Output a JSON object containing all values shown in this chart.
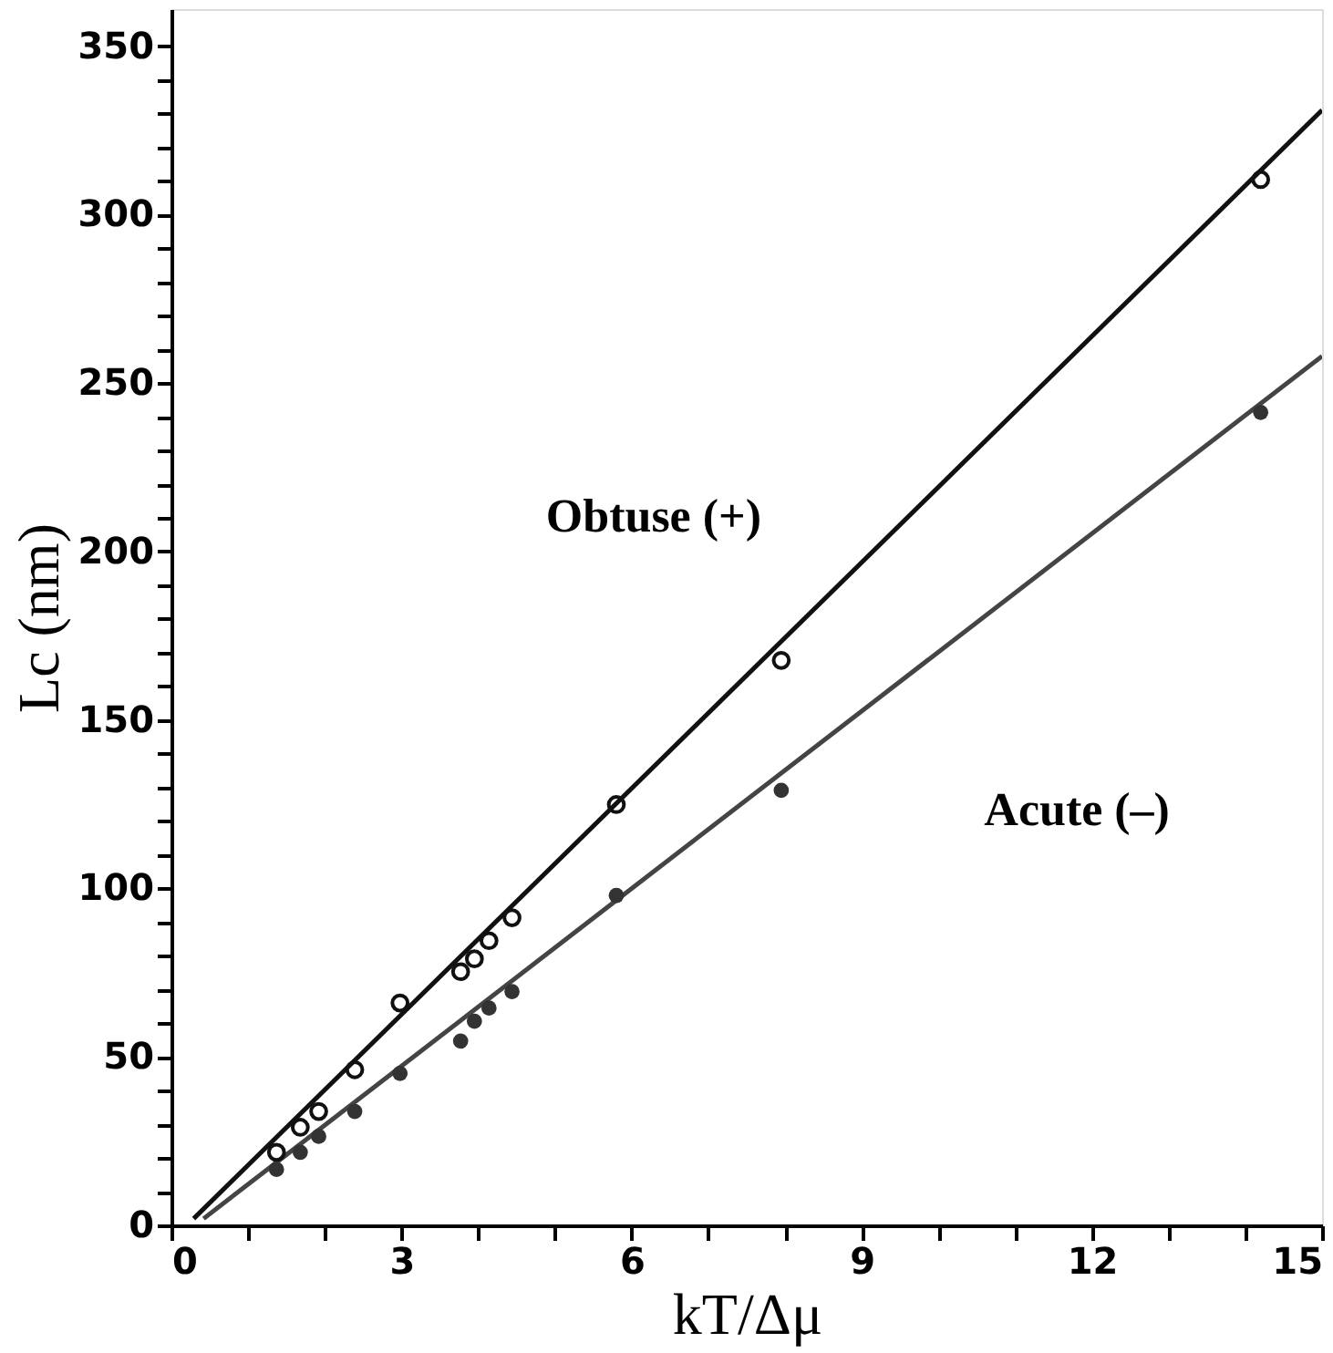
{
  "chart_data": {
    "type": "scatter",
    "xlabel": "kT/Δμ",
    "ylabel": "Lc (nm)",
    "xlim": [
      0,
      15
    ],
    "ylim": [
      0,
      361
    ],
    "xticks": [
      0,
      {
        "value": 1,
        "label": null
      },
      {
        "value": 2,
        "label": null
      },
      3,
      {
        "value": 4,
        "label": null
      },
      {
        "value": 5,
        "label": null
      },
      6,
      {
        "value": 7,
        "label": null
      },
      {
        "value": 8,
        "label": null
      },
      9,
      {
        "value": 10,
        "label": null
      },
      {
        "value": 11,
        "label": null
      },
      12,
      {
        "value": 13,
        "label": null
      },
      {
        "value": 14,
        "label": null
      },
      15
    ],
    "yticks": [
      0,
      {
        "value": 10,
        "label": null
      },
      {
        "value": 20,
        "label": null
      },
      {
        "value": 30,
        "label": null
      },
      {
        "value": 40,
        "label": null
      },
      50,
      {
        "value": 60,
        "label": null
      },
      {
        "value": 70,
        "label": null
      },
      {
        "value": 80,
        "label": null
      },
      {
        "value": 90,
        "label": null
      },
      100,
      {
        "value": 110,
        "label": null
      },
      {
        "value": 120,
        "label": null
      },
      {
        "value": 130,
        "label": null
      },
      {
        "value": 140,
        "label": null
      },
      150,
      {
        "value": 160,
        "label": null
      },
      {
        "value": 170,
        "label": null
      },
      {
        "value": 180,
        "label": null
      },
      {
        "value": 190,
        "label": null
      },
      200,
      {
        "value": 210,
        "label": null
      },
      {
        "value": 220,
        "label": null
      },
      {
        "value": 230,
        "label": null
      },
      {
        "value": 240,
        "label": null
      },
      250,
      {
        "value": 260,
        "label": null
      },
      {
        "value": 270,
        "label": null
      },
      {
        "value": 280,
        "label": null
      },
      {
        "value": 290,
        "label": null
      },
      300,
      {
        "value": 310,
        "label": null
      },
      {
        "value": 320,
        "label": null
      },
      {
        "value": 330,
        "label": null
      },
      {
        "value": 340,
        "label": null
      },
      350
    ],
    "grid": false,
    "legend": false,
    "marker": "circle",
    "series": [
      {
        "type": "line",
        "name": "Obtuse (+)",
        "marker": "none",
        "color": "#111111",
        "x": [
          0.29,
          15
        ],
        "values": [
          2,
          331
        ]
      },
      {
        "type": "line",
        "name": "Acute (–)",
        "marker": "none",
        "color": "#444444",
        "x": [
          0.42,
          15
        ],
        "values": [
          2,
          258
        ]
      },
      {
        "color": "#111111",
        "x": [
          1.37,
          1.68,
          1.92,
          2.39,
          2.98,
          3.77,
          3.95,
          4.14,
          4.44,
          5.8,
          7.95,
          14.2
        ],
        "values": [
          21.7,
          29.1,
          33.8,
          46.2,
          66,
          75.3,
          79.1,
          84.5,
          91.3,
          124.9,
          167.7,
          310.4
        ]
      },
      {
        "color": "#333333",
        "x": [
          1.37,
          1.68,
          1.92,
          2.39,
          2.98,
          3.77,
          3.95,
          4.14,
          4.44,
          5.8,
          7.95,
          14.2
        ],
        "values": [
          16.6,
          21.7,
          26.4,
          33.8,
          45.1,
          54.7,
          60.6,
          64.5,
          69.4,
          97.9,
          129.1,
          241.3
        ]
      }
    ]
  }
}
